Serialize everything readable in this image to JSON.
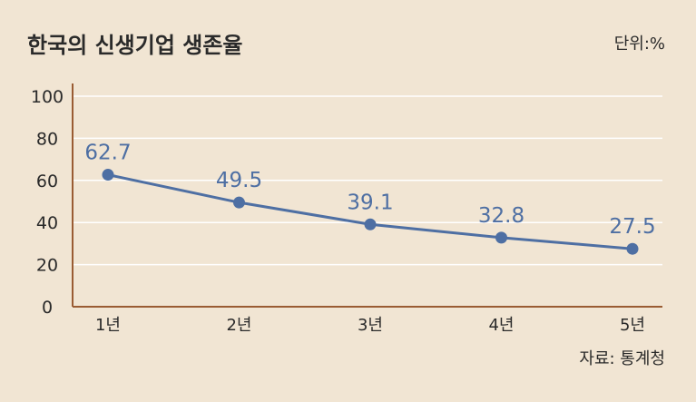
{
  "title": "한국의 신생기업 생존율",
  "unit_label": "단위:%",
  "source_label": "자료: 통계청",
  "colors": {
    "background": "#f1e5d3",
    "line": "#4e6fa3",
    "axis": "#9a5c33",
    "grid": "#ffffff",
    "text": "#2a2a2a"
  },
  "chart_data": {
    "type": "line",
    "categories": [
      "1년",
      "2년",
      "3년",
      "4년",
      "5년"
    ],
    "values": [
      62.7,
      49.5,
      39.1,
      32.8,
      27.5
    ],
    "value_labels": [
      "62.7",
      "49.5",
      "39.1",
      "32.8",
      "27.5"
    ],
    "ylim": [
      0,
      100
    ],
    "yticks": [
      0,
      20,
      40,
      60,
      80,
      100
    ],
    "grid": true,
    "xlabel": "",
    "ylabel": ""
  }
}
